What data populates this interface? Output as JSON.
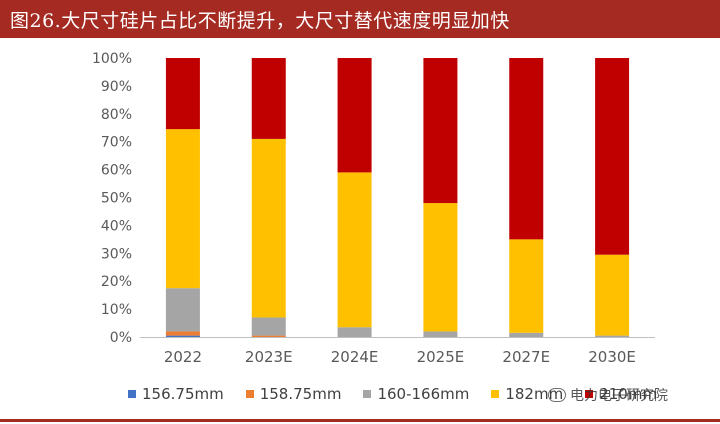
{
  "header": {
    "title": "图26.大尺寸硅片占比不断提升，大尺寸替代速度明显加快"
  },
  "watermark": {
    "text": "电力电子研究院",
    "icon": "wechat-icon"
  },
  "colors": {
    "title_bar": "#a52a22",
    "s156": "#4472c4",
    "s158": "#ed7d31",
    "s160": "#a5a5a5",
    "s182": "#ffc000",
    "s210": "#c00000"
  },
  "chart_data": {
    "type": "bar",
    "stacked": true,
    "categories": [
      "2022",
      "2023E",
      "2024E",
      "2025E",
      "2027E",
      "2030E"
    ],
    "ylim": [
      0,
      100
    ],
    "y_ticks": [
      "0%",
      "10%",
      "20%",
      "30%",
      "40%",
      "50%",
      "60%",
      "70%",
      "80%",
      "90%",
      "100%"
    ],
    "grid": false,
    "legend_position": "bottom",
    "series": [
      {
        "name": "156.75mm",
        "color": "#4472c4",
        "values": [
          0.5,
          0,
          0,
          0,
          0,
          0
        ]
      },
      {
        "name": "158.75mm",
        "color": "#ed7d31",
        "values": [
          1.5,
          0.5,
          0,
          0,
          0,
          0
        ]
      },
      {
        "name": "160-166mm",
        "color": "#a5a5a5",
        "values": [
          15.5,
          6.5,
          3.5,
          2,
          1.5,
          0.5
        ]
      },
      {
        "name": "182mm",
        "color": "#ffc000",
        "values": [
          57,
          64,
          55.5,
          46,
          33.5,
          29
        ]
      },
      {
        "name": "210mm",
        "color": "#c00000",
        "values": [
          25.5,
          29,
          41,
          52,
          65,
          70.5
        ]
      }
    ]
  }
}
